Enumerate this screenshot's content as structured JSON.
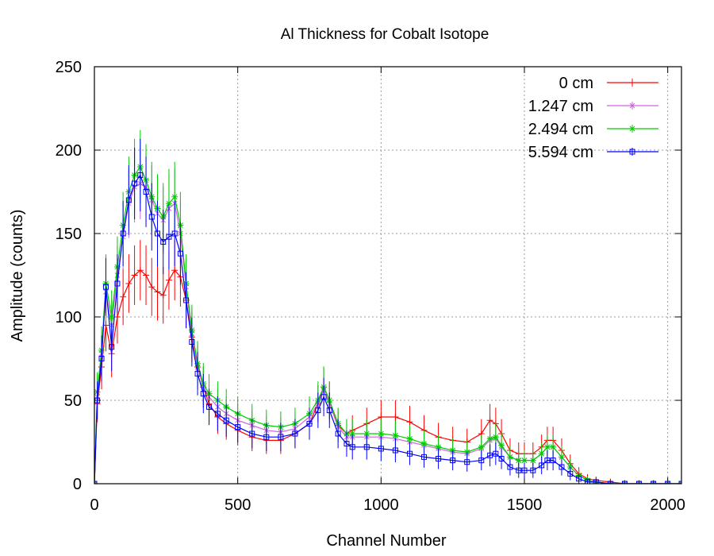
{
  "chart_data": {
    "type": "line",
    "title": "Al Thickness for Cobalt Isotope",
    "xlabel": "Channel Number",
    "ylabel": "Amplitude (counts)",
    "xlim": [
      0,
      2048
    ],
    "ylim": [
      0,
      250
    ],
    "x_ticks": [
      0,
      500,
      1000,
      1500,
      2000
    ],
    "x_tick_labels": [
      "0",
      "500",
      "1000",
      "1500",
      "2000"
    ],
    "y_ticks": [
      0,
      50,
      100,
      150,
      200,
      250
    ],
    "y_tick_labels": [
      "0",
      "50",
      "100",
      "150",
      "200",
      "250"
    ],
    "grid": true,
    "error_bars": true,
    "legend_position": "top-right",
    "x": [
      0,
      10,
      25,
      40,
      60,
      80,
      100,
      120,
      140,
      160,
      180,
      200,
      220,
      240,
      260,
      280,
      300,
      320,
      340,
      360,
      380,
      400,
      430,
      460,
      500,
      550,
      600,
      650,
      700,
      750,
      780,
      800,
      820,
      850,
      880,
      900,
      950,
      1000,
      1050,
      1100,
      1150,
      1200,
      1250,
      1300,
      1350,
      1380,
      1400,
      1420,
      1450,
      1480,
      1500,
      1530,
      1560,
      1580,
      1600,
      1630,
      1660,
      1690,
      1720,
      1750,
      1800,
      1850,
      1900,
      1950,
      2000,
      2048
    ],
    "series": [
      {
        "name": "0 cm",
        "color": "#ff0000",
        "marker": "plus",
        "values": [
          0,
          48,
          70,
          95,
          78,
          100,
          112,
          120,
          125,
          128,
          125,
          118,
          115,
          113,
          122,
          128,
          124,
          110,
          88,
          70,
          58,
          48,
          40,
          36,
          32,
          28,
          26,
          26,
          30,
          36,
          48,
          58,
          50,
          35,
          30,
          32,
          36,
          40,
          40,
          37,
          32,
          28,
          26,
          25,
          30,
          38,
          36,
          30,
          20,
          18,
          18,
          18,
          22,
          26,
          26,
          20,
          12,
          6,
          3,
          2,
          1,
          0,
          0,
          0,
          0,
          0
        ]
      },
      {
        "name": "1.247 cm",
        "color": "#cc66dd",
        "marker": "cross",
        "values": [
          0,
          52,
          78,
          115,
          95,
          125,
          148,
          168,
          178,
          180,
          178,
          170,
          162,
          158,
          165,
          168,
          150,
          118,
          90,
          70,
          58,
          52,
          46,
          42,
          38,
          35,
          32,
          31,
          33,
          40,
          48,
          56,
          48,
          34,
          28,
          28,
          28,
          28,
          27,
          25,
          23,
          21,
          19,
          18,
          21,
          26,
          27,
          22,
          16,
          14,
          14,
          14,
          18,
          22,
          22,
          16,
          10,
          5,
          2,
          1,
          0,
          0,
          0,
          0,
          0,
          0
        ]
      },
      {
        "name": "2.494 cm",
        "color": "#00cc00",
        "marker": "star",
        "values": [
          0,
          55,
          80,
          120,
          100,
          130,
          155,
          175,
          185,
          190,
          182,
          172,
          165,
          160,
          168,
          172,
          155,
          120,
          92,
          72,
          60,
          54,
          50,
          46,
          42,
          38,
          35,
          34,
          36,
          42,
          50,
          58,
          50,
          36,
          30,
          30,
          30,
          30,
          29,
          27,
          24,
          22,
          20,
          19,
          22,
          27,
          28,
          23,
          16,
          14,
          14,
          14,
          18,
          22,
          22,
          16,
          10,
          5,
          2,
          1,
          0,
          0,
          0,
          0,
          0,
          0
        ]
      },
      {
        "name": "5.594 cm",
        "color": "#0000ff",
        "marker": "square",
        "values": [
          0,
          50,
          75,
          118,
          82,
          120,
          150,
          170,
          180,
          185,
          175,
          160,
          150,
          145,
          148,
          150,
          138,
          110,
          85,
          66,
          54,
          46,
          42,
          38,
          34,
          30,
          28,
          28,
          30,
          36,
          44,
          52,
          44,
          30,
          24,
          22,
          22,
          21,
          20,
          18,
          16,
          15,
          14,
          13,
          14,
          17,
          18,
          15,
          10,
          8,
          8,
          8,
          11,
          14,
          14,
          10,
          6,
          3,
          1,
          1,
          0,
          0,
          0,
          0,
          0,
          0
        ]
      }
    ]
  }
}
